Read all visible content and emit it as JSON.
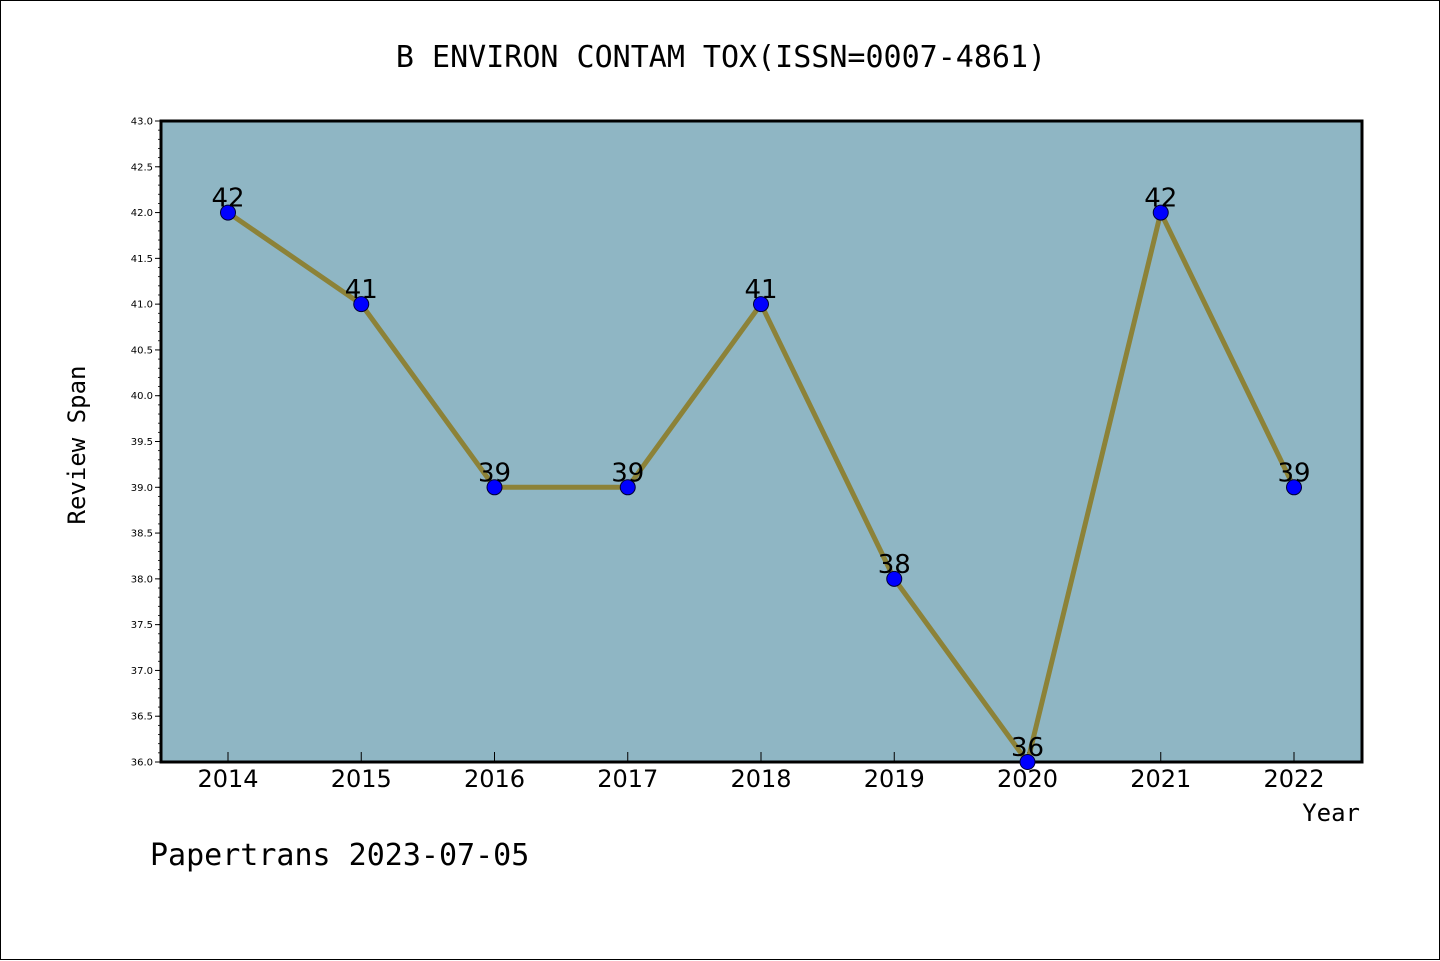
{
  "chart_data": {
    "type": "line",
    "title": "B ENVIRON CONTAM TOX(ISSN=0007-4861)",
    "xlabel": "Year",
    "ylabel": "Review Span",
    "categories": [
      "2014",
      "2015",
      "2016",
      "2017",
      "2018",
      "2019",
      "2020",
      "2021",
      "2022"
    ],
    "series": [
      {
        "values": [
          42,
          41,
          39,
          39,
          41,
          38,
          36,
          42,
          39
        ],
        "data_labels": [
          "42",
          "41",
          "39",
          "39",
          "41",
          "38",
          "36",
          "42",
          "39"
        ]
      }
    ],
    "ylim": [
      36.0,
      43.0
    ],
    "yticks": [
      "36.0",
      "36.5",
      "37.0",
      "37.5",
      "38.0",
      "38.5",
      "39.0",
      "39.5",
      "40.0",
      "40.5",
      "41.0",
      "41.5",
      "42.0",
      "42.5",
      "43.0"
    ],
    "grid": false,
    "colors": {
      "plot_background": "#8fb6c4",
      "line": "#8c8238",
      "marker": "#0000ff"
    }
  },
  "footer": {
    "text": "Papertrans 2023-07-05"
  }
}
